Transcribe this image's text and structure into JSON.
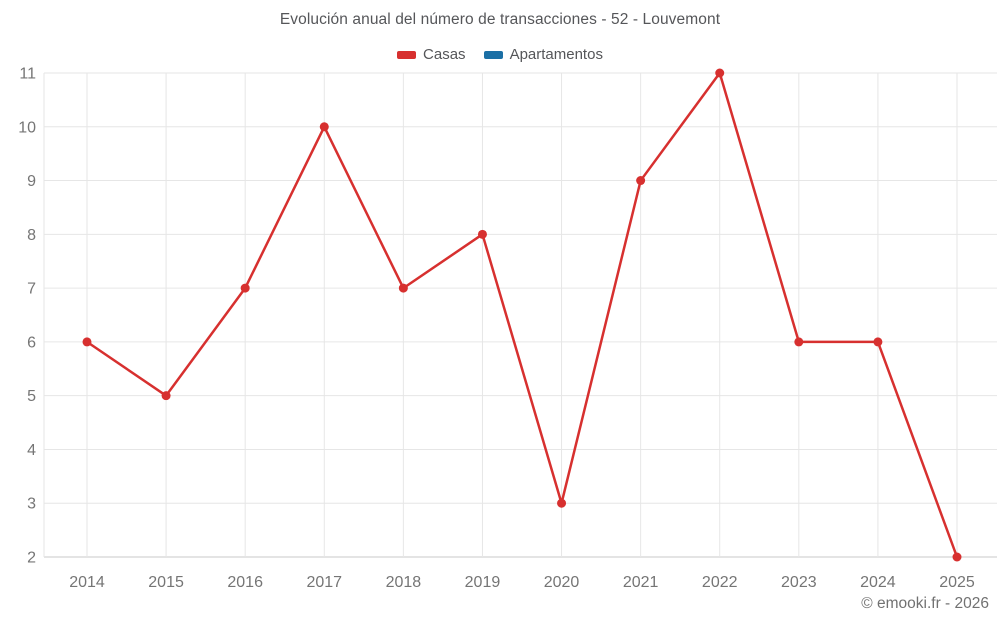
{
  "chart": {
    "title": "Evolución anual del número de transacciones - 52 - Louvemont"
  },
  "chart_data": {
    "type": "line",
    "title": "Evolución anual del número de transacciones - 52 - Louvemont",
    "categories": [
      "2014",
      "2015",
      "2016",
      "2017",
      "2018",
      "2019",
      "2020",
      "2021",
      "2022",
      "2023",
      "2024",
      "2025"
    ],
    "series": [
      {
        "name": "Casas",
        "color": "#d7302f",
        "values": [
          6,
          5,
          7,
          10,
          7,
          8,
          3,
          9,
          11,
          6,
          6,
          2
        ]
      },
      {
        "name": "Apartamentos",
        "color": "#1b6fa5",
        "values": []
      }
    ],
    "xlabel": "",
    "ylabel": "",
    "ylim": [
      2,
      11
    ],
    "yticks": [
      2,
      3,
      4,
      5,
      6,
      7,
      8,
      9,
      10,
      11
    ],
    "grid": true,
    "legend_position": "top"
  },
  "footer": {
    "copyright": "© emooki.fr - 2026"
  }
}
